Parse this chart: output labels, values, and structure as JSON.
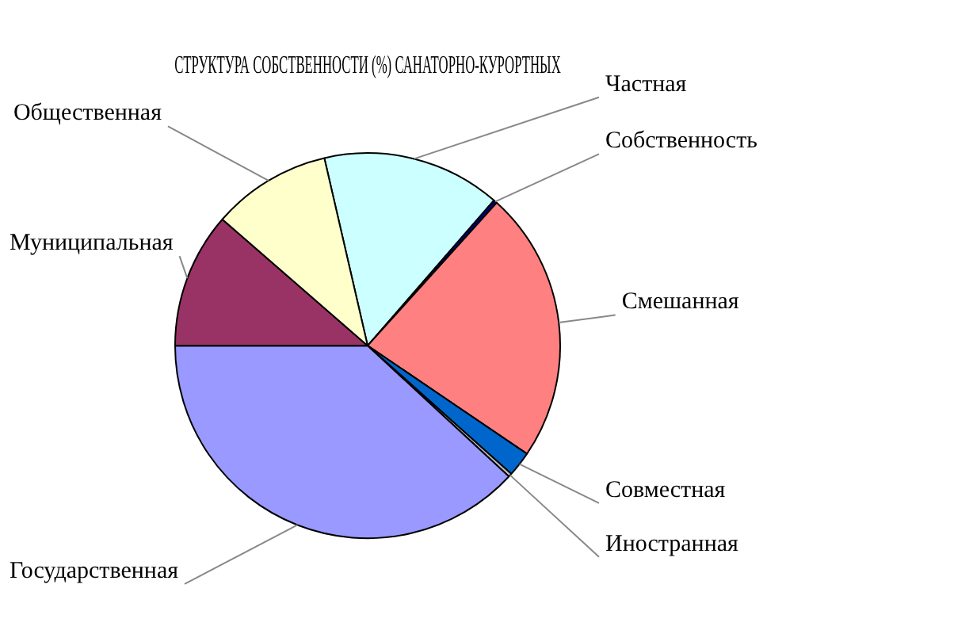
{
  "chart_data": {
    "type": "pie",
    "title": "СТРУКТУРА СОБСТВЕННОСТИ (%) САНАТОРНО-КУРОРТНЫХ",
    "categories": [
      "Частная",
      "Собственность",
      "Смешанная",
      "Совместная",
      "Иностранная",
      "Государственная",
      "Муниципальная",
      "Общественная"
    ],
    "values": [
      15,
      0.3,
      22.8,
      2.1,
      0.3,
      38.1,
      11.4,
      10
    ],
    "colors": [
      "#ccffff",
      "#000080",
      "#ff8080",
      "#0066cc",
      "#c0c0c0",
      "#9999ff",
      "#993366",
      "#ffffcc"
    ]
  }
}
